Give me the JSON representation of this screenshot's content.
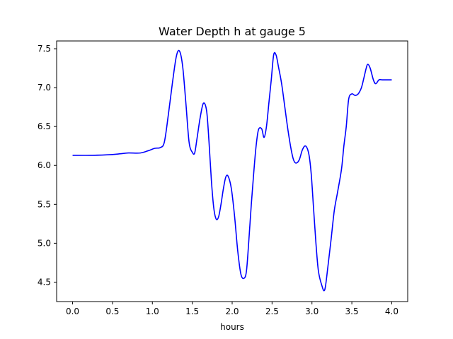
{
  "chart_data": {
    "type": "line",
    "title": "Water Depth h at gauge 5",
    "xlabel": "hours",
    "ylabel": "",
    "xlim": [
      -0.2,
      4.2
    ],
    "ylim": [
      4.25,
      7.6
    ],
    "grid": false,
    "legend": "none",
    "x_ticks": [
      {
        "value": 0.0,
        "label": "0.0"
      },
      {
        "value": 0.5,
        "label": "0.5"
      },
      {
        "value": 1.0,
        "label": "1.0"
      },
      {
        "value": 1.5,
        "label": "1.5"
      },
      {
        "value": 2.0,
        "label": "2.0"
      },
      {
        "value": 2.5,
        "label": "2.5"
      },
      {
        "value": 3.0,
        "label": "3.0"
      },
      {
        "value": 3.5,
        "label": "3.5"
      },
      {
        "value": 4.0,
        "label": "4.0"
      }
    ],
    "y_ticks": [
      {
        "value": 4.5,
        "label": "4.5"
      },
      {
        "value": 5.0,
        "label": "5.0"
      },
      {
        "value": 5.5,
        "label": "5.5"
      },
      {
        "value": 6.0,
        "label": "6.0"
      },
      {
        "value": 6.5,
        "label": "6.5"
      },
      {
        "value": 7.0,
        "label": "7.0"
      },
      {
        "value": 7.5,
        "label": "7.5"
      }
    ],
    "series": [
      {
        "color": "#0000ff",
        "x": [
          0.0,
          0.25,
          0.5,
          0.6,
          0.7,
          0.85,
          0.95,
          1.03,
          1.1,
          1.15,
          1.2,
          1.25,
          1.3,
          1.34,
          1.38,
          1.42,
          1.46,
          1.5,
          1.53,
          1.56,
          1.6,
          1.64,
          1.68,
          1.71,
          1.74,
          1.77,
          1.8,
          1.83,
          1.86,
          1.89,
          1.92,
          1.95,
          1.99,
          2.03,
          2.07,
          2.11,
          2.15,
          2.18,
          2.21,
          2.24,
          2.27,
          2.3,
          2.33,
          2.37,
          2.4,
          2.43,
          2.46,
          2.49,
          2.52,
          2.55,
          2.58,
          2.62,
          2.66,
          2.7,
          2.74,
          2.77,
          2.8,
          2.84,
          2.88,
          2.92,
          2.96,
          2.99,
          3.02,
          3.05,
          3.08,
          3.12,
          3.16,
          3.2,
          3.24,
          3.28,
          3.32,
          3.37,
          3.4,
          3.43,
          3.46,
          3.5,
          3.54,
          3.58,
          3.62,
          3.65,
          3.68,
          3.7,
          3.73,
          3.77,
          3.8,
          3.84,
          3.88,
          3.92,
          3.95,
          4.0
        ],
        "y": [
          6.13,
          6.13,
          6.14,
          6.15,
          6.16,
          6.16,
          6.19,
          6.22,
          6.23,
          6.3,
          6.65,
          7.05,
          7.4,
          7.47,
          7.27,
          6.8,
          6.3,
          6.17,
          6.16,
          6.35,
          6.62,
          6.8,
          6.7,
          6.3,
          5.8,
          5.45,
          5.31,
          5.34,
          5.5,
          5.7,
          5.85,
          5.86,
          5.7,
          5.35,
          4.9,
          4.6,
          4.55,
          4.65,
          5.05,
          5.5,
          5.9,
          6.25,
          6.46,
          6.47,
          6.36,
          6.5,
          6.8,
          7.1,
          7.42,
          7.42,
          7.27,
          7.05,
          6.75,
          6.45,
          6.2,
          6.07,
          6.03,
          6.07,
          6.2,
          6.25,
          6.15,
          5.9,
          5.45,
          5.0,
          4.65,
          4.47,
          4.4,
          4.7,
          5.05,
          5.42,
          5.65,
          5.95,
          6.25,
          6.5,
          6.85,
          6.92,
          6.9,
          6.92,
          7.0,
          7.12,
          7.25,
          7.3,
          7.25,
          7.1,
          7.05,
          7.1,
          7.1,
          7.1,
          7.1,
          7.1
        ]
      }
    ]
  }
}
